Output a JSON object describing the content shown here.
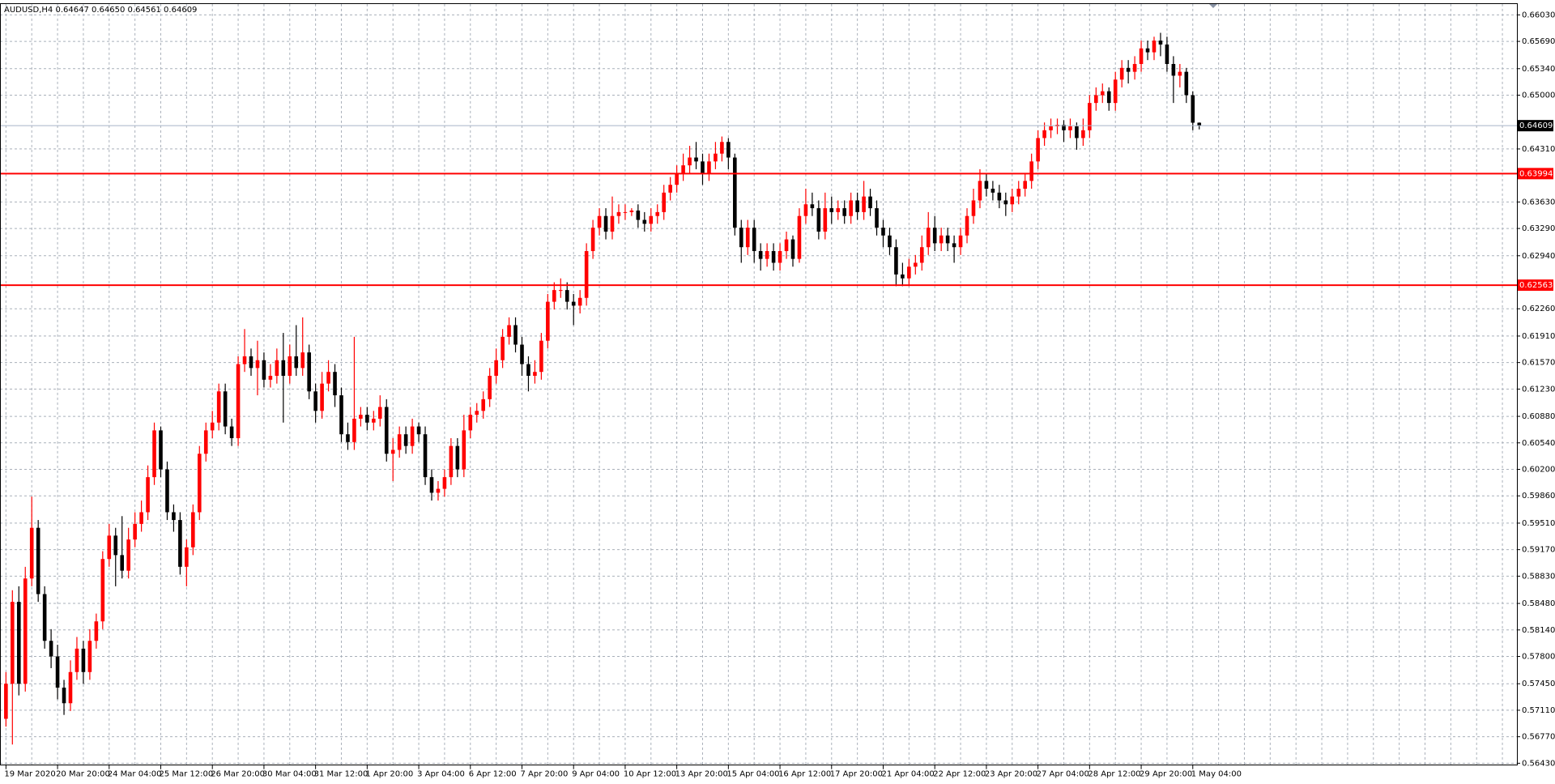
{
  "chart_data": {
    "type": "candlestick",
    "title": "AUDUSD,H4  0.64647 0.64650 0.64561 0.64609",
    "up_color": "#ff0000",
    "down_color": "#000000",
    "grid": true,
    "levels": [
      0.63994,
      0.62563
    ],
    "level_color": "#ff0000",
    "current_price": 0.64609,
    "ylim": [
      0.56406,
      0.6617
    ],
    "yticks": [
      {
        "value": 0.6603,
        "label": "0.66030"
      },
      {
        "value": 0.6569,
        "label": "0.65690"
      },
      {
        "value": 0.6534,
        "label": "0.65340"
      },
      {
        "value": 0.65,
        "label": "0.65000"
      },
      {
        "value": 0.6431,
        "label": "0.64310"
      },
      {
        "value": 0.6363,
        "label": "0.63630"
      },
      {
        "value": 0.6329,
        "label": "0.63290"
      },
      {
        "value": 0.6294,
        "label": "0.62940"
      },
      {
        "value": 0.6226,
        "label": "0.62260"
      },
      {
        "value": 0.6191,
        "label": "0.61910"
      },
      {
        "value": 0.6157,
        "label": "0.61570"
      },
      {
        "value": 0.6123,
        "label": "0.61230"
      },
      {
        "value": 0.6088,
        "label": "0.60880"
      },
      {
        "value": 0.6054,
        "label": "0.60540"
      },
      {
        "value": 0.602,
        "label": "0.60200"
      },
      {
        "value": 0.5986,
        "label": "0.59860"
      },
      {
        "value": 0.5951,
        "label": "0.59510"
      },
      {
        "value": 0.5917,
        "label": "0.59170"
      },
      {
        "value": 0.5883,
        "label": "0.58830"
      },
      {
        "value": 0.5848,
        "label": "0.58480"
      },
      {
        "value": 0.5814,
        "label": "0.58140"
      },
      {
        "value": 0.578,
        "label": "0.57800"
      },
      {
        "value": 0.5745,
        "label": "0.57450"
      },
      {
        "value": 0.5711,
        "label": "0.57110"
      },
      {
        "value": 0.5677,
        "label": "0.56770"
      },
      {
        "value": 0.5643,
        "label": "0.56430"
      }
    ],
    "categories": [
      "19 Mar 2020",
      null,
      null,
      null,
      null,
      null,
      null,
      null,
      "20 Mar 20:00",
      null,
      null,
      null,
      null,
      null,
      null,
      null,
      "24 Mar 04:00",
      null,
      null,
      null,
      null,
      null,
      null,
      null,
      "25 Mar 12:00",
      null,
      null,
      null,
      null,
      null,
      null,
      null,
      "26 Mar 20:00",
      null,
      null,
      null,
      null,
      null,
      null,
      null,
      "30 Mar 04:00",
      null,
      null,
      null,
      null,
      null,
      null,
      null,
      "31 Mar 12:00",
      null,
      null,
      null,
      null,
      null,
      null,
      null,
      "1 Apr 20:00",
      null,
      null,
      null,
      null,
      null,
      null,
      null,
      "3 Apr 04:00",
      null,
      null,
      null,
      null,
      null,
      null,
      null,
      "6 Apr 12:00",
      null,
      null,
      null,
      null,
      null,
      null,
      null,
      "7 Apr 20:00",
      null,
      null,
      null,
      null,
      null,
      null,
      null,
      "9 Apr 04:00",
      null,
      null,
      null,
      null,
      null,
      null,
      null,
      "10 Apr 12:00",
      null,
      null,
      null,
      null,
      null,
      null,
      null,
      "13 Apr 20:00",
      null,
      null,
      null,
      null,
      null,
      null,
      null,
      "15 Apr 04:00",
      null,
      null,
      null,
      null,
      null,
      null,
      null,
      "16 Apr 12:00",
      null,
      null,
      null,
      null,
      null,
      null,
      null,
      "17 Apr 20:00",
      null,
      null,
      null,
      null,
      null,
      null,
      null,
      "21 Apr 04:00",
      null,
      null,
      null,
      null,
      null,
      null,
      null,
      "22 Apr 12:00",
      null,
      null,
      null,
      null,
      null,
      null,
      null,
      "23 Apr 20:00",
      null,
      null,
      null,
      null,
      null,
      null,
      null,
      "27 Apr 04:00",
      null,
      null,
      null,
      null,
      null,
      null,
      null,
      "28 Apr 12:00",
      null,
      null,
      null,
      null,
      null,
      null,
      null,
      "29 Apr 20:00",
      null,
      null,
      null,
      null,
      null,
      null,
      null,
      "1 May 04:00",
      null
    ],
    "open": [
      0.57,
      0.5745,
      0.585,
      0.5745,
      0.588,
      0.5945,
      0.586,
      0.58,
      0.578,
      0.574,
      0.572,
      0.576,
      0.579,
      0.576,
      0.58,
      0.5825,
      0.5905,
      0.5935,
      0.591,
      0.589,
      0.593,
      0.595,
      0.5965,
      0.601,
      0.607,
      0.602,
      0.5965,
      0.5955,
      0.5895,
      0.592,
      0.5965,
      0.604,
      0.607,
      0.608,
      0.612,
      0.6075,
      0.606,
      0.6155,
      0.6165,
      0.615,
      0.616,
      0.6135,
      0.614,
      0.616,
      0.614,
      0.6165,
      0.615,
      0.617,
      0.612,
      0.6095,
      0.613,
      0.6145,
      0.6115,
      0.6065,
      0.6055,
      0.6085,
      0.609,
      0.608,
      0.6085,
      0.61,
      0.604,
      0.6045,
      0.6065,
      0.605,
      0.6075,
      0.6065,
      0.601,
      0.599,
      0.5995,
      0.601,
      0.605,
      0.602,
      0.607,
      0.609,
      0.6095,
      0.611,
      0.614,
      0.616,
      0.619,
      0.6205,
      0.618,
      0.6155,
      0.614,
      0.6145,
      0.6185,
      0.6235,
      0.625,
      0.625,
      0.6235,
      0.623,
      0.624,
      0.63,
      0.633,
      0.6345,
      0.6325,
      0.6345,
      0.635,
      0.635,
      0.6352,
      0.634,
      0.6335,
      0.6345,
      0.635,
      0.6375,
      0.6385,
      0.64,
      0.641,
      0.642,
      0.6415,
      0.64,
      0.6415,
      0.6425,
      0.644,
      0.642,
      0.633,
      0.6305,
      0.633,
      0.63,
      0.629,
      0.63,
      0.6285,
      0.63,
      0.6315,
      0.629,
      0.6345,
      0.636,
      0.6355,
      0.6325,
      0.6355,
      0.635,
      0.6355,
      0.6345,
      0.6365,
      0.635,
      0.637,
      0.6355,
      0.633,
      0.632,
      0.6305,
      0.627,
      0.6265,
      0.628,
      0.6285,
      0.6305,
      0.633,
      0.631,
      0.632,
      0.631,
      0.6305,
      0.632,
      0.6345,
      0.6365,
      0.639,
      0.638,
      0.6375,
      0.6365,
      0.636,
      0.637,
      0.638,
      0.639,
      0.6415,
      0.6445,
      0.6455,
      0.646,
      0.6462,
      0.6455,
      0.646,
      0.6445,
      0.6455,
      0.649,
      0.65,
      0.6505,
      0.649,
      0.652,
      0.6535,
      0.653,
      0.654,
      0.656,
      0.6555,
      0.657,
      0.6565,
      0.654,
      0.6525,
      0.653,
      0.65,
      0.64647
    ],
    "high": [
      0.576,
      0.5865,
      0.587,
      0.5895,
      0.5985,
      0.5955,
      0.587,
      0.5815,
      0.5795,
      0.575,
      0.5775,
      0.5805,
      0.58,
      0.5815,
      0.5835,
      0.5915,
      0.595,
      0.5945,
      0.596,
      0.5945,
      0.5965,
      0.598,
      0.6025,
      0.608,
      0.6075,
      0.603,
      0.5975,
      0.5965,
      0.593,
      0.5975,
      0.605,
      0.608,
      0.6095,
      0.613,
      0.613,
      0.6085,
      0.6165,
      0.62,
      0.6175,
      0.6185,
      0.617,
      0.6155,
      0.6175,
      0.6195,
      0.618,
      0.6205,
      0.6215,
      0.618,
      0.613,
      0.6145,
      0.616,
      0.6155,
      0.6125,
      0.608,
      0.619,
      0.61,
      0.61,
      0.6095,
      0.6115,
      0.611,
      0.606,
      0.6075,
      0.6075,
      0.6085,
      0.608,
      0.6075,
      0.602,
      0.6005,
      0.602,
      0.606,
      0.606,
      0.609,
      0.61,
      0.6105,
      0.612,
      0.615,
      0.6175,
      0.62,
      0.6215,
      0.6215,
      0.619,
      0.6165,
      0.616,
      0.6195,
      0.6245,
      0.626,
      0.6265,
      0.626,
      0.6245,
      0.625,
      0.631,
      0.634,
      0.6355,
      0.6355,
      0.637,
      0.636,
      0.636,
      0.6355,
      0.636,
      0.635,
      0.6355,
      0.636,
      0.6385,
      0.6395,
      0.641,
      0.6425,
      0.6435,
      0.644,
      0.6425,
      0.6425,
      0.644,
      0.6447,
      0.6445,
      0.6425,
      0.634,
      0.634,
      0.634,
      0.631,
      0.631,
      0.631,
      0.631,
      0.6325,
      0.632,
      0.6355,
      0.638,
      0.6375,
      0.6365,
      0.6375,
      0.637,
      0.6365,
      0.6365,
      0.6375,
      0.6375,
      0.639,
      0.638,
      0.6365,
      0.634,
      0.633,
      0.6315,
      0.6285,
      0.629,
      0.6295,
      0.632,
      0.635,
      0.6345,
      0.633,
      0.633,
      0.632,
      0.633,
      0.6355,
      0.638,
      0.6405,
      0.64,
      0.639,
      0.6385,
      0.6375,
      0.638,
      0.639,
      0.64,
      0.6425,
      0.6455,
      0.6465,
      0.647,
      0.647,
      0.6468,
      0.647,
      0.6465,
      0.647,
      0.65,
      0.651,
      0.6515,
      0.651,
      0.653,
      0.6545,
      0.6545,
      0.655,
      0.657,
      0.657,
      0.6575,
      0.658,
      0.6575,
      0.655,
      0.654,
      0.6535,
      0.6505,
      0.6465
    ],
    "low": [
      0.569,
      0.5667,
      0.573,
      0.5735,
      0.587,
      0.585,
      0.579,
      0.5765,
      0.5725,
      0.5705,
      0.571,
      0.575,
      0.5745,
      0.575,
      0.579,
      0.5815,
      0.5895,
      0.587,
      0.588,
      0.588,
      0.592,
      0.594,
      0.5955,
      0.6,
      0.601,
      0.5955,
      0.594,
      0.5885,
      0.587,
      0.591,
      0.5955,
      0.603,
      0.606,
      0.607,
      0.6065,
      0.605,
      0.605,
      0.6145,
      0.614,
      0.6115,
      0.6125,
      0.6125,
      0.613,
      0.608,
      0.613,
      0.614,
      0.614,
      0.611,
      0.608,
      0.6085,
      0.612,
      0.61,
      0.6055,
      0.6045,
      0.6045,
      0.6075,
      0.607,
      0.607,
      0.6075,
      0.603,
      0.6005,
      0.6035,
      0.604,
      0.604,
      0.6055,
      0.6,
      0.598,
      0.598,
      0.5985,
      0.6,
      0.601,
      0.601,
      0.606,
      0.608,
      0.6085,
      0.61,
      0.613,
      0.615,
      0.618,
      0.617,
      0.614,
      0.612,
      0.613,
      0.6135,
      0.6175,
      0.6225,
      0.624,
      0.6225,
      0.6205,
      0.622,
      0.623,
      0.629,
      0.632,
      0.6315,
      0.6315,
      0.6335,
      0.634,
      0.6345,
      0.633,
      0.6325,
      0.6325,
      0.6335,
      0.634,
      0.6365,
      0.6375,
      0.639,
      0.64,
      0.6405,
      0.6385,
      0.639,
      0.6405,
      0.6415,
      0.6405,
      0.632,
      0.6285,
      0.6295,
      0.6285,
      0.6275,
      0.628,
      0.6275,
      0.6275,
      0.629,
      0.628,
      0.6285,
      0.6335,
      0.6345,
      0.6315,
      0.6315,
      0.6335,
      0.634,
      0.6335,
      0.6335,
      0.634,
      0.634,
      0.6345,
      0.632,
      0.6305,
      0.6295,
      0.6255,
      0.6255,
      0.6255,
      0.627,
      0.6275,
      0.6295,
      0.63,
      0.63,
      0.63,
      0.6285,
      0.6295,
      0.631,
      0.6335,
      0.6355,
      0.637,
      0.6365,
      0.6355,
      0.6345,
      0.635,
      0.636,
      0.637,
      0.638,
      0.6405,
      0.6435,
      0.6445,
      0.645,
      0.644,
      0.6445,
      0.643,
      0.6435,
      0.6445,
      0.648,
      0.649,
      0.648,
      0.648,
      0.651,
      0.6515,
      0.652,
      0.653,
      0.6545,
      0.6545,
      0.655,
      0.653,
      0.649,
      0.651,
      0.649,
      0.6455,
      0.64561
    ],
    "close": [
      0.5745,
      0.585,
      0.5745,
      0.588,
      0.5945,
      0.586,
      0.58,
      0.578,
      0.574,
      0.572,
      0.576,
      0.579,
      0.576,
      0.58,
      0.5825,
      0.5905,
      0.5935,
      0.591,
      0.589,
      0.593,
      0.595,
      0.5965,
      0.601,
      0.607,
      0.602,
      0.5965,
      0.5955,
      0.5895,
      0.592,
      0.5965,
      0.604,
      0.607,
      0.608,
      0.612,
      0.6075,
      0.606,
      0.6155,
      0.6165,
      0.615,
      0.616,
      0.6135,
      0.614,
      0.616,
      0.614,
      0.6165,
      0.615,
      0.617,
      0.612,
      0.6095,
      0.613,
      0.6145,
      0.6115,
      0.6065,
      0.6055,
      0.6085,
      0.609,
      0.608,
      0.6085,
      0.61,
      0.604,
      0.6045,
      0.6065,
      0.605,
      0.6075,
      0.6065,
      0.601,
      0.599,
      0.5995,
      0.601,
      0.605,
      0.602,
      0.607,
      0.609,
      0.6095,
      0.611,
      0.614,
      0.616,
      0.619,
      0.6205,
      0.618,
      0.6155,
      0.614,
      0.6145,
      0.6185,
      0.6235,
      0.625,
      0.625,
      0.6235,
      0.623,
      0.624,
      0.63,
      0.633,
      0.6345,
      0.6325,
      0.6345,
      0.635,
      0.635,
      0.6352,
      0.634,
      0.6335,
      0.6345,
      0.635,
      0.6375,
      0.6385,
      0.64,
      0.641,
      0.642,
      0.6415,
      0.64,
      0.6415,
      0.6425,
      0.644,
      0.642,
      0.633,
      0.6305,
      0.633,
      0.63,
      0.629,
      0.63,
      0.6285,
      0.63,
      0.6315,
      0.629,
      0.6345,
      0.636,
      0.6355,
      0.6325,
      0.6355,
      0.635,
      0.6355,
      0.6345,
      0.6365,
      0.635,
      0.637,
      0.6355,
      0.633,
      0.632,
      0.6305,
      0.627,
      0.6265,
      0.628,
      0.6285,
      0.6305,
      0.633,
      0.631,
      0.632,
      0.631,
      0.6305,
      0.632,
      0.6345,
      0.6365,
      0.639,
      0.638,
      0.6375,
      0.6365,
      0.636,
      0.637,
      0.638,
      0.639,
      0.6415,
      0.6445,
      0.6455,
      0.646,
      0.6462,
      0.6455,
      0.646,
      0.6445,
      0.6455,
      0.649,
      0.65,
      0.6505,
      0.649,
      0.652,
      0.6535,
      0.653,
      0.654,
      0.656,
      0.6555,
      0.657,
      0.6565,
      0.654,
      0.6525,
      0.653,
      0.65,
      0.64647,
      0.64609
    ]
  }
}
